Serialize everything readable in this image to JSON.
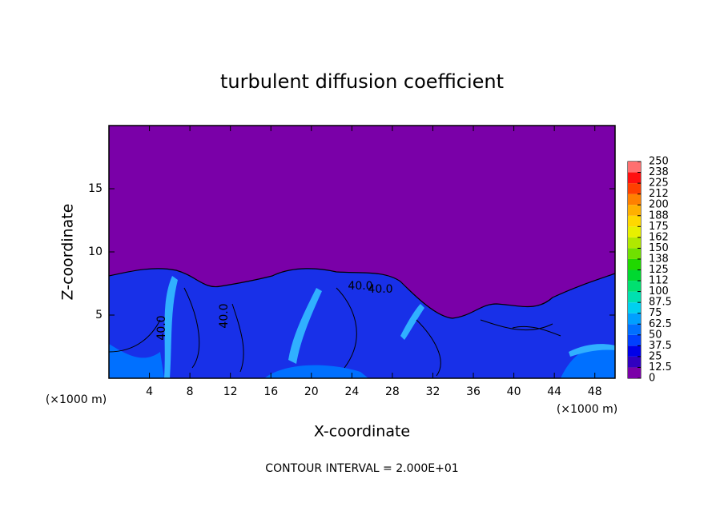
{
  "chart_data": {
    "type": "contour",
    "title": "turbulent diffusion coefficient",
    "x_label": "X-coordinate",
    "y_label": "Z-coordinate",
    "x_unit_label": "(×1000 m)",
    "note": "CONTOUR INTERVAL = 2.000E+01",
    "contour_labels": [
      "40.0",
      "40.0",
      "40.0",
      "40.0"
    ],
    "xlim": [
      0,
      50
    ],
    "xticks": [
      4,
      8,
      12,
      16,
      20,
      24,
      28,
      32,
      36,
      40,
      44,
      48
    ],
    "ylim": [
      0,
      20
    ],
    "yticks": [
      5,
      10,
      15
    ],
    "colorbar": {
      "lim": [
        0,
        250
      ],
      "ticks": [
        0,
        12.5,
        25,
        37.5,
        50,
        62.5,
        75,
        87.5,
        100,
        {
          "value": 112.5,
          "label": "112"
        },
        125,
        {
          "value": 137.5,
          "label": "138"
        },
        150,
        {
          "value": 162.5,
          "label": "162"
        },
        175,
        {
          "value": 187.5,
          "label": "188"
        },
        200,
        {
          "value": 212.5,
          "label": "212"
        },
        225,
        {
          "value": 237.5,
          "label": "238"
        },
        250
      ],
      "colors": [
        "#7a00a8",
        "#3000c0",
        "#0000e8",
        "#0040ff",
        "#0070ff",
        "#00a0ff",
        "#00d0f0",
        "#00e0b0",
        "#00e070",
        "#00d830",
        "#20d800",
        "#70e000",
        "#b0e800",
        "#e8f000",
        "#ffd800",
        "#ffb000",
        "#ff8000",
        "#ff4000",
        "#ff1010",
        "#ff7070"
      ]
    }
  }
}
